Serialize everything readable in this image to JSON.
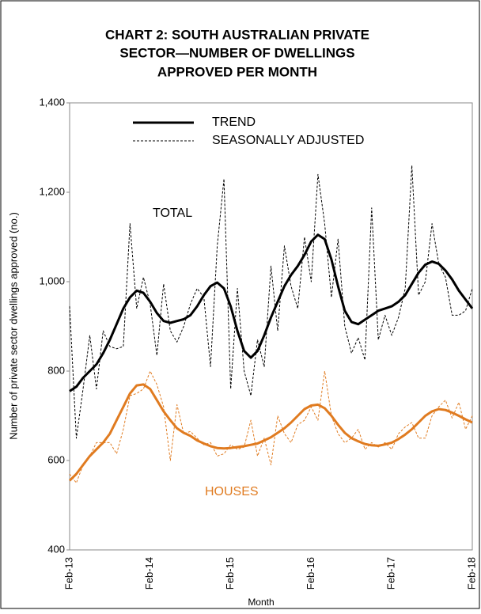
{
  "chart_data": {
    "type": "line",
    "title": [
      "CHART 2: SOUTH AUSTRALIAN PRIVATE",
      "SECTOR—NUMBER OF DWELLINGS",
      "APPROVED PER MONTH"
    ],
    "x_label": "Month",
    "y_label": "Number of private sector dwellings approved (no.)",
    "categories": [
      "Feb-13",
      null,
      null,
      null,
      null,
      null,
      null,
      null,
      null,
      null,
      null,
      null,
      "Feb-14",
      null,
      null,
      null,
      null,
      null,
      null,
      null,
      null,
      null,
      null,
      null,
      "Feb-15",
      null,
      null,
      null,
      null,
      null,
      null,
      null,
      null,
      null,
      null,
      null,
      "Feb-16",
      null,
      null,
      null,
      null,
      null,
      null,
      null,
      null,
      null,
      null,
      null,
      "Feb-17",
      null,
      null,
      null,
      null,
      null,
      null,
      null,
      null,
      null,
      null,
      null,
      "Feb-18"
    ],
    "ylim": [
      400,
      1400
    ],
    "yticks": [
      400,
      600,
      800,
      {
        "value": 1000,
        "label": "1,000"
      },
      {
        "value": 1200,
        "label": "1,200"
      },
      {
        "value": 1400,
        "label": "1,400"
      }
    ],
    "grid": false,
    "legend": [
      {
        "name": "TREND",
        "color": "#000000",
        "dashed": false
      },
      {
        "name": "SEASONALLY ADJUSTED",
        "color": "#000000",
        "dashed": true
      }
    ],
    "annotations": [
      {
        "text": "TOTAL",
        "color": "#000000"
      },
      {
        "text": "HOUSES",
        "color": "#e07b20"
      }
    ],
    "series": [
      {
        "color": "#000000",
        "dashed": false,
        "values": [
          755,
          765,
          785,
          800,
          815,
          840,
          870,
          905,
          940,
          965,
          980,
          975,
          955,
          930,
          912,
          908,
          912,
          916,
          925,
          945,
          970,
          990,
          998,
          985,
          945,
          890,
          845,
          830,
          845,
          880,
          920,
          955,
          990,
          1015,
          1035,
          1060,
          1090,
          1105,
          1095,
          1050,
          990,
          935,
          910,
          905,
          915,
          925,
          935,
          940,
          945,
          955,
          970,
          995,
          1020,
          1038,
          1045,
          1040,
          1025,
          1005,
          980,
          960,
          940
        ]
      },
      {
        "color": "#000000",
        "dashed": true,
        "values": [
          945,
          650,
          760,
          880,
          760,
          890,
          855,
          850,
          855,
          1130,
          940,
          1010,
          950,
          835,
          995,
          890,
          865,
          900,
          950,
          985,
          965,
          810,
          1080,
          1230,
          760,
          985,
          800,
          745,
          870,
          810,
          1035,
          890,
          1080,
          990,
          940,
          1100,
          1000,
          1240,
          1130,
          965,
          1095,
          900,
          840,
          875,
          825,
          1165,
          870,
          925,
          880,
          920,
          985,
          1260,
          970,
          1000,
          1130,
          1040,
          1010,
          925,
          925,
          935,
          985
        ]
      },
      {
        "color": "#e07b20",
        "dashed": false,
        "values": [
          555,
          570,
          590,
          610,
          625,
          640,
          660,
          690,
          720,
          750,
          768,
          770,
          760,
          735,
          710,
          690,
          672,
          662,
          655,
          645,
          638,
          632,
          628,
          627,
          628,
          630,
          632,
          635,
          638,
          645,
          652,
          662,
          672,
          685,
          700,
          715,
          723,
          725,
          717,
          700,
          680,
          662,
          650,
          643,
          637,
          634,
          633,
          636,
          640,
          648,
          658,
          670,
          685,
          700,
          710,
          715,
          713,
          707,
          700,
          692,
          685
        ]
      },
      {
        "color": "#e07b20",
        "dashed": true,
        "values": [
          570,
          550,
          590,
          610,
          640,
          640,
          640,
          615,
          670,
          745,
          750,
          760,
          800,
          770,
          720,
          600,
          725,
          660,
          665,
          650,
          635,
          640,
          610,
          615,
          635,
          625,
          630,
          690,
          610,
          650,
          590,
          700,
          660,
          640,
          680,
          690,
          720,
          690,
          800,
          700,
          660,
          640,
          650,
          670,
          625,
          640,
          630,
          640,
          625,
          660,
          675,
          685,
          650,
          650,
          700,
          720,
          735,
          695,
          730,
          670,
          700
        ]
      }
    ]
  }
}
